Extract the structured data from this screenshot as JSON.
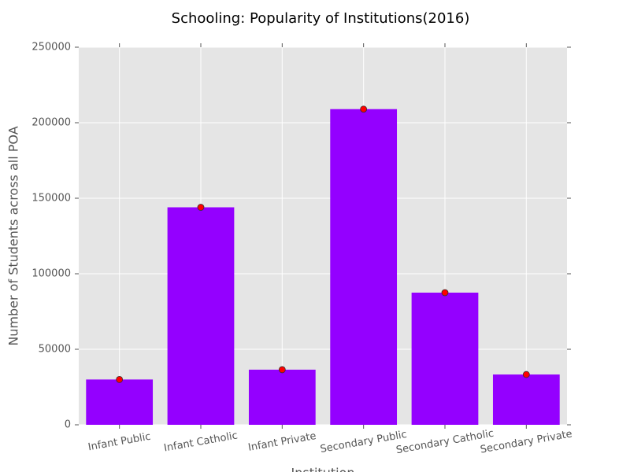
{
  "chart_data": {
    "type": "bar",
    "title": "Schooling: Popularity of Institutions(2016)",
    "x_label": "Institution",
    "y_label": "Number of Students across all POA",
    "categories": [
      "Infant Public",
      "Infant Catholic",
      "Infant Private",
      "Secondary Public",
      "Secondary Catholic",
      "Secondary Private"
    ],
    "values": [
      30000,
      144000,
      36500,
      209000,
      87500,
      33300
    ],
    "color": "#9400ff",
    "marker_color": "#ff0000",
    "ylim": [
      0,
      250000
    ],
    "yticks": [
      0,
      50000,
      100000,
      150000,
      200000,
      250000
    ],
    "grid": true
  }
}
